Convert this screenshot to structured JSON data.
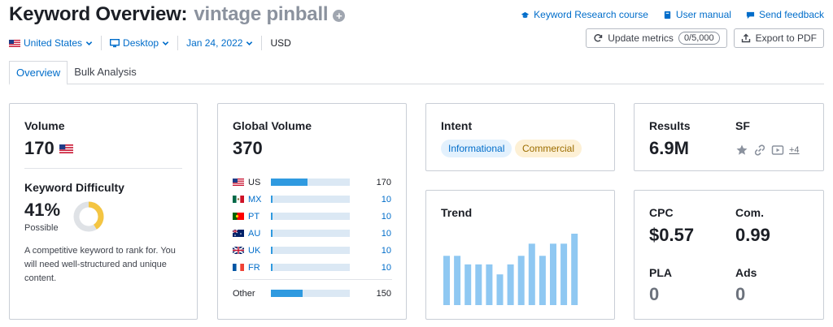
{
  "header": {
    "title": "Keyword Overview:",
    "keyword": "vintage pinball",
    "add_icon": "plus-circle-icon",
    "links": [
      {
        "label": "Keyword Research course",
        "icon": "graduation-cap-icon"
      },
      {
        "label": "User manual",
        "icon": "book-icon"
      },
      {
        "label": "Send feedback",
        "icon": "chat-icon"
      }
    ]
  },
  "filters": {
    "country": "United States",
    "device": "Desktop",
    "date": "Jan 24, 2022",
    "currency": "USD"
  },
  "buttons": {
    "update": "Update metrics",
    "update_count": "0/5,000",
    "export": "Export to PDF"
  },
  "tabs": [
    {
      "label": "Overview",
      "active": true
    },
    {
      "label": "Bulk Analysis",
      "active": false
    }
  ],
  "volume": {
    "label": "Volume",
    "value": "170"
  },
  "difficulty": {
    "label": "Keyword Difficulty",
    "value": "41%",
    "level": "Possible",
    "percent": 41,
    "description": "A competitive keyword to rank for. You will need well-structured and unique content.",
    "ring_color": "#f4c542"
  },
  "global_volume": {
    "label": "Global Volume",
    "value": "370",
    "rows": [
      {
        "code": "US",
        "value": "170",
        "share": 0.46
      },
      {
        "code": "MX",
        "value": "10",
        "share": 0.02
      },
      {
        "code": "PT",
        "value": "10",
        "share": 0.02
      },
      {
        "code": "AU",
        "value": "10",
        "share": 0.02
      },
      {
        "code": "UK",
        "value": "10",
        "share": 0.02
      },
      {
        "code": "FR",
        "value": "10",
        "share": 0.02
      }
    ],
    "other": {
      "label": "Other",
      "value": "150",
      "share": 0.4
    }
  },
  "intent": {
    "label": "Intent",
    "tags": [
      "Informational",
      "Commercial"
    ]
  },
  "trend": {
    "label": "Trend",
    "values": [
      0.69,
      0.69,
      0.57,
      0.57,
      0.57,
      0.43,
      0.57,
      0.69,
      0.86,
      0.69,
      0.86,
      0.86,
      1.0
    ]
  },
  "results": {
    "label": "Results",
    "value": "6.9M"
  },
  "sf": {
    "label": "SF",
    "more": "+4"
  },
  "cpc": {
    "label": "CPC",
    "value": "$0.57"
  },
  "com": {
    "label": "Com.",
    "value": "0.99"
  },
  "pla": {
    "label": "PLA",
    "value": "0"
  },
  "ads": {
    "label": "Ads",
    "value": "0"
  }
}
